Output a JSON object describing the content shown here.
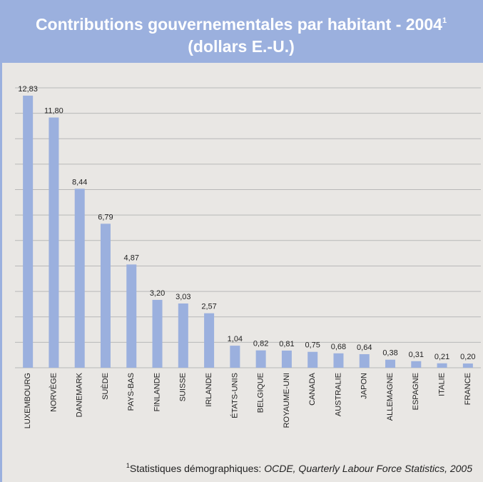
{
  "chart_data": {
    "type": "bar",
    "title": "Contributions gouvernementales par habitant - 2004",
    "title_note": "1",
    "subtitle": "(dollars E.-U.)",
    "categories": [
      "LUXEMBOURG",
      "NORVÈGE",
      "DANEMARK",
      "SUÈDE",
      "PAYS-BAS",
      "FINLANDE",
      "SUISSE",
      "IRLANDE",
      "ÉTATS-UNIS",
      "BELGIQUE",
      "ROYAUME-UNI",
      "CANADA",
      "AUSTRALIE",
      "JAPON",
      "ALLEMAGNE",
      "ESPAGNE",
      "ITALIE",
      "FRANCE"
    ],
    "values": [
      12.83,
      11.8,
      8.44,
      6.79,
      4.87,
      3.2,
      3.03,
      2.57,
      1.04,
      0.82,
      0.81,
      0.75,
      0.68,
      0.64,
      0.38,
      0.31,
      0.21,
      0.2
    ],
    "value_labels": [
      "12,83",
      "11,80",
      "8,44",
      "6,79",
      "4,87",
      "3,20",
      "3,03",
      "2,57",
      "1,04",
      "0,82",
      "0,81",
      "0,75",
      "0,68",
      "0,64",
      "0,38",
      "0,31",
      "0,21",
      "0,20"
    ],
    "color": "#9bb0de",
    "ylim": [
      0,
      13.5
    ],
    "yticks": [
      0,
      1.2,
      2.4,
      3.6,
      4.8,
      6,
      7.2,
      8.4,
      9.6,
      10.8,
      12,
      13.2
    ],
    "grid": true,
    "footnote_marker": "1",
    "footnote": "Statistiques démographiques: ",
    "footnote_source": "OCDE, Quarterly Labour Force Statistics, 2005"
  }
}
